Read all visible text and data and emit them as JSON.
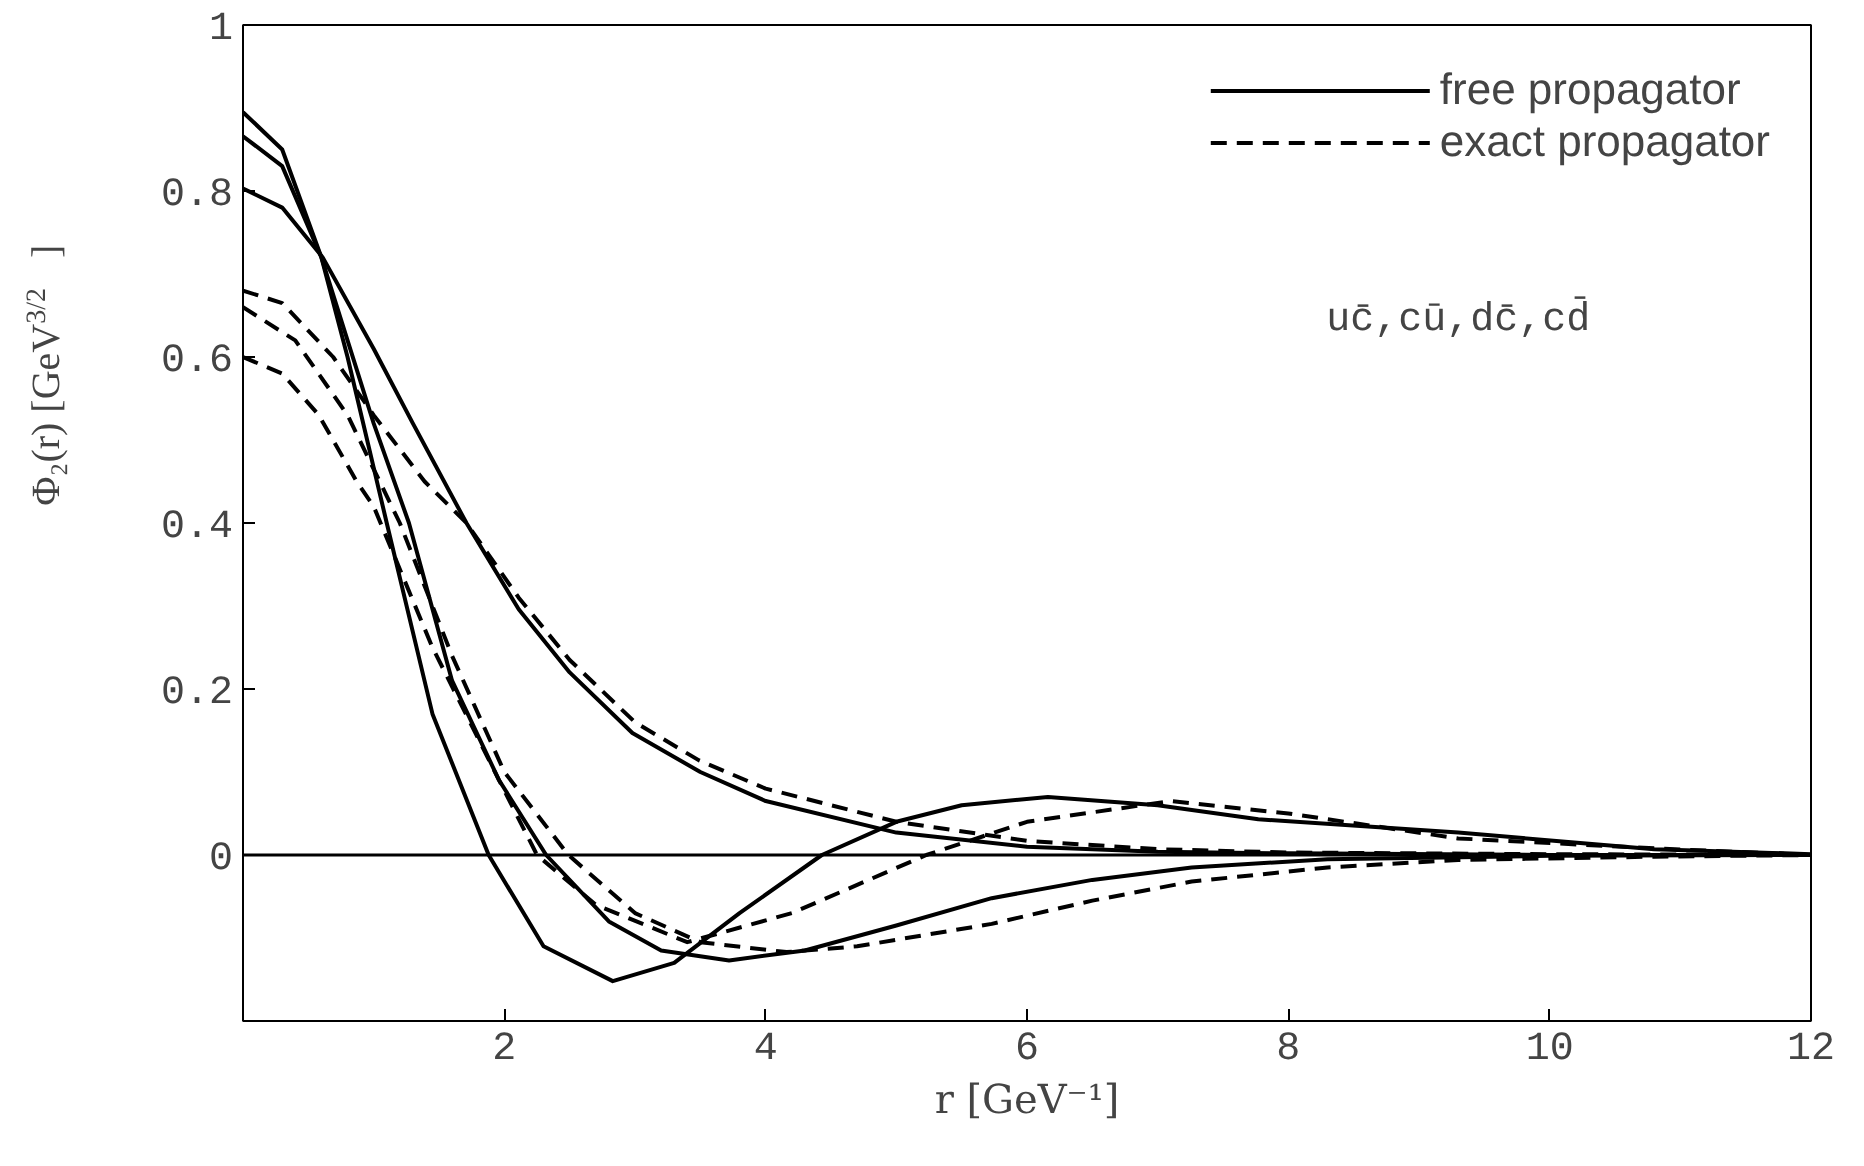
{
  "chart_data": {
    "type": "line",
    "xlabel": "r [GeV⁻¹]",
    "ylabel": "Φ₂(r) [GeV$^{3/2}$]",
    "xlim": [
      0,
      12
    ],
    "ylim": [
      -0.2,
      1
    ],
    "xticks": [
      2,
      4,
      6,
      8,
      10,
      12
    ],
    "yticks": [
      0,
      0.2,
      0.4,
      0.6,
      0.8,
      1
    ],
    "grid": false,
    "legend": "top right",
    "marker": "none",
    "ref_lines": [
      {
        "axis": "y",
        "value": 0,
        "color": "#000000"
      }
    ],
    "annotations": [
      "uc̄,cū,dc̄,cd̄"
    ],
    "series": [
      {
        "name": "free propagator",
        "color": "#000000",
        "line_style": "solid",
        "x": [
          0,
          0.3,
          0.6,
          0.8,
          1.1,
          1.45,
          1.88,
          2.3,
          2.83,
          3.3,
          3.8,
          4.43,
          5,
          5.5,
          6.16,
          7,
          7.77,
          9.3,
          10.8,
          12
        ],
        "values": [
          0.895,
          0.85,
          0.72,
          0.6,
          0.4,
          0.17,
          0,
          -0.11,
          -0.152,
          -0.13,
          -0.07,
          0,
          0.04,
          0.06,
          0.07,
          0.06,
          0.043,
          0.027,
          0.007,
          0.001
        ]
      },
      {
        "color": "#000000",
        "line_style": "solid",
        "x": [
          0,
          0.3,
          0.6,
          1.0,
          1.27,
          1.6,
          1.96,
          2.32,
          2.8,
          3.2,
          3.72,
          4.3,
          5,
          5.73,
          6.5,
          7.26,
          8.3,
          10,
          12
        ],
        "values": [
          0.866,
          0.83,
          0.72,
          0.52,
          0.4,
          0.21,
          0.09,
          0,
          -0.08,
          -0.115,
          -0.127,
          -0.115,
          -0.085,
          -0.052,
          -0.03,
          -0.015,
          -0.005,
          -0.001,
          0
        ]
      },
      {
        "color": "#000000",
        "line_style": "solid",
        "x": [
          0,
          0.3,
          0.61,
          1.0,
          1.3,
          1.71,
          2.11,
          2.5,
          2.98,
          3.5,
          4.0,
          5.0,
          6,
          7,
          8,
          10,
          12
        ],
        "values": [
          0.803,
          0.78,
          0.72,
          0.61,
          0.52,
          0.4,
          0.296,
          0.22,
          0.147,
          0.1,
          0.065,
          0.027,
          0.01,
          0.004,
          0.002,
          0,
          0
        ]
      },
      {
        "name": "exact propagator",
        "color": "#000000",
        "line_style": "dashed",
        "x": [
          0,
          0.3,
          0.69,
          1.0,
          1.39,
          1.71,
          2.11,
          2.5,
          3.0,
          3.49,
          4.0,
          5.0,
          6,
          7,
          8,
          10,
          12
        ],
        "values": [
          0.68,
          0.665,
          0.6,
          0.53,
          0.45,
          0.4,
          0.31,
          0.235,
          0.16,
          0.114,
          0.08,
          0.04,
          0.017,
          0.007,
          0.003,
          0.001,
          0
        ]
      },
      {
        "color": "#000000",
        "line_style": "dashed",
        "x": [
          0,
          0.4,
          0.8,
          1.2,
          1.6,
          2.0,
          2.49,
          3.0,
          3.5,
          4.16,
          4.7,
          5.73,
          6.5,
          7.26,
          8.3,
          9.3,
          10.8,
          12
        ],
        "values": [
          0.66,
          0.62,
          0.53,
          0.4,
          0.24,
          0.1,
          0,
          -0.07,
          -0.105,
          -0.117,
          -0.11,
          -0.083,
          -0.055,
          -0.032,
          -0.015,
          -0.006,
          -0.002,
          0
        ]
      },
      {
        "color": "#000000",
        "line_style": "dashed",
        "x": [
          0,
          0.3,
          0.58,
          0.87,
          1.0,
          1.45,
          1.96,
          2.25,
          2.7,
          3.4,
          4.2,
          5.23,
          6,
          7.1,
          8,
          9.3,
          10.8,
          12
        ],
        "values": [
          0.6,
          0.58,
          0.53,
          0.45,
          0.42,
          0.25,
          0.09,
          0,
          -0.06,
          -0.105,
          -0.07,
          0,
          0.04,
          0.065,
          0.05,
          0.02,
          0.008,
          0
        ]
      }
    ]
  }
}
